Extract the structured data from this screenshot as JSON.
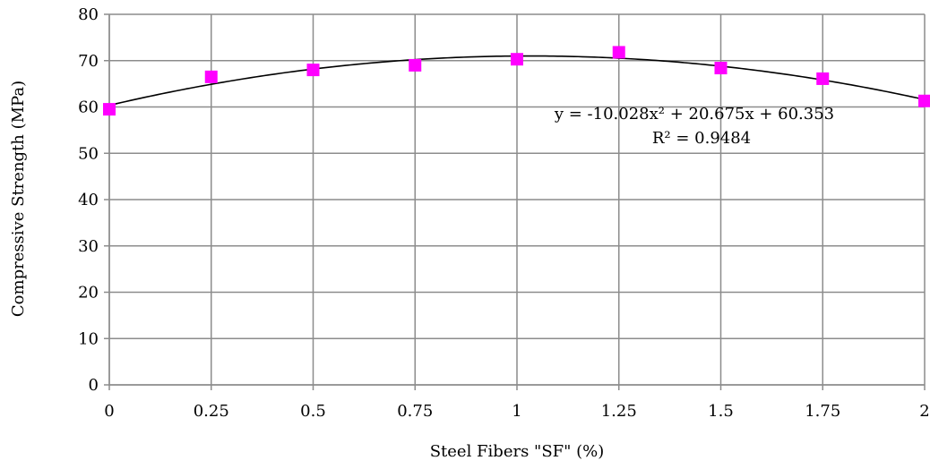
{
  "chart_data": {
    "type": "scatter",
    "title": "",
    "xlabel": "Steel Fibers \"SF\" (%)",
    "ylabel": "Compressive Strength  (MPa)",
    "xlim": [
      0,
      2
    ],
    "ylim": [
      0,
      80
    ],
    "x_ticks": [
      0,
      0.25,
      0.5,
      0.75,
      1,
      1.25,
      1.5,
      1.75,
      2
    ],
    "x_tick_labels": [
      "0",
      "0.25",
      "0.5",
      "0.75",
      "1",
      "1.25",
      "1.5",
      "1.75",
      "2"
    ],
    "y_ticks": [
      0,
      10,
      20,
      30,
      40,
      50,
      60,
      70,
      80
    ],
    "y_tick_labels": [
      "0",
      "10",
      "20",
      "30",
      "40",
      "50",
      "60",
      "70",
      "80"
    ],
    "grid": true,
    "legend": "none",
    "series": [
      {
        "marker": "square",
        "color": "#ff00ff",
        "x": [
          0,
          0.25,
          0.5,
          0.75,
          1,
          1.25,
          1.5,
          1.75,
          2
        ],
        "y": [
          59.5,
          66.5,
          68,
          69,
          70.3,
          71.8,
          68.4,
          66.1,
          61.3
        ]
      }
    ],
    "trendline": {
      "type": "polynomial",
      "coefficients": [
        -10.028,
        20.675,
        60.353
      ],
      "color": "#000000",
      "equation_text": "y = -10.028x² + 20.675x + 60.353",
      "r2_text": "R² = 0.9484"
    }
  }
}
